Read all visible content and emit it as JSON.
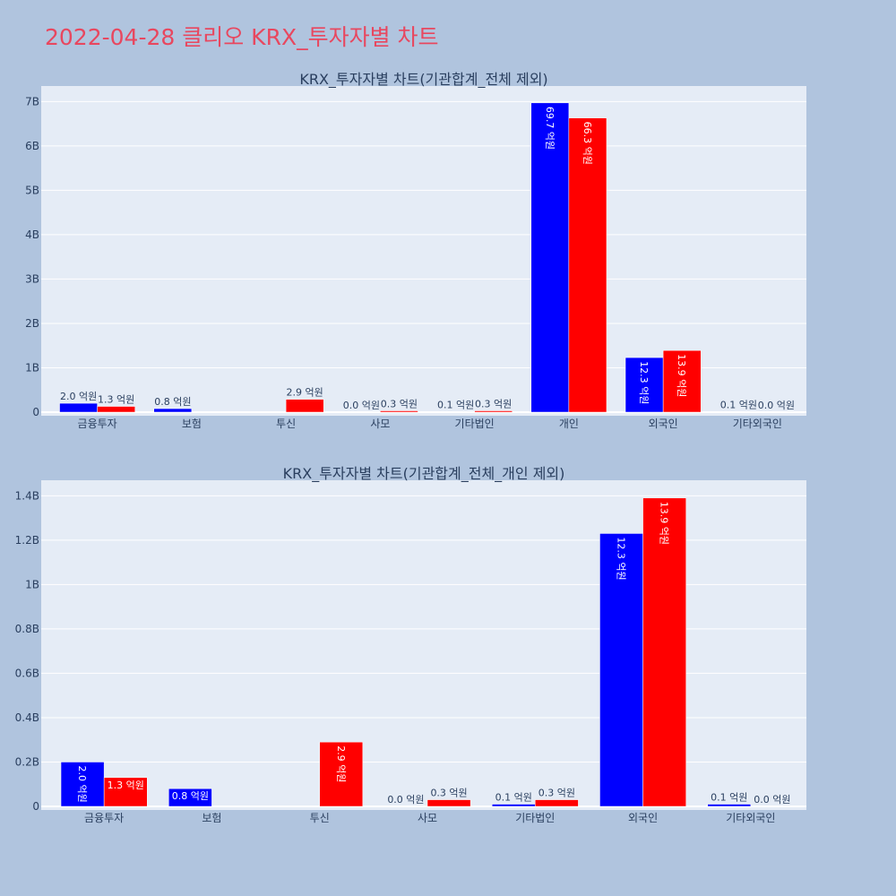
{
  "page_title": "2022-04-28 클리오 KRX_투자자별 차트",
  "chart_data": [
    {
      "type": "bar",
      "title": "KRX_투자자별 차트(기관합계_전체 제외)",
      "xlabel": "",
      "ylabel": "",
      "categories": [
        "금융투자",
        "보험",
        "투신",
        "사모",
        "기타법인",
        "개인",
        "외국인",
        "기타외국인"
      ],
      "series": [
        {
          "color": "#0000ff",
          "values": [
            0.2,
            0.08,
            0.0,
            0.0,
            0.01,
            6.97,
            1.23,
            0.01
          ],
          "labels": [
            "2.0 억원",
            "0.8 억원",
            "",
            "0.0 억원",
            "0.1 억원",
            "69.7 억원",
            "12.3 억원",
            "0.1 억원"
          ]
        },
        {
          "color": "#ff0000",
          "values": [
            0.13,
            0.0,
            0.29,
            0.03,
            0.03,
            6.63,
            1.39,
            0.0
          ],
          "labels": [
            "1.3 억원",
            "",
            "2.9 억원",
            "0.3 억원",
            "0.3 억원",
            "66.3 억원",
            "13.9 억원",
            "0.0 억원"
          ]
        }
      ],
      "yticks": [
        "0",
        "1B",
        "2B",
        "3B",
        "4B",
        "5B",
        "6B",
        "7B"
      ],
      "ytick_values": [
        0,
        1,
        2,
        3,
        4,
        5,
        6,
        7
      ],
      "ylim": [
        0,
        7.35
      ],
      "grid": true,
      "legend": "none"
    },
    {
      "type": "bar",
      "title": "KRX_투자자별 차트(기관합계_전체_개인 제외)",
      "xlabel": "",
      "ylabel": "",
      "categories": [
        "금융투자",
        "보험",
        "투신",
        "사모",
        "기타법인",
        "외국인",
        "기타외국인"
      ],
      "series": [
        {
          "color": "#0000ff",
          "values": [
            0.2,
            0.08,
            0.0,
            0.0,
            0.01,
            1.23,
            0.01
          ],
          "labels": [
            "2.0 억원",
            "0.8 억원",
            "",
            "0.0 억원",
            "0.1 억원",
            "12.3 억원",
            "0.1 억원"
          ]
        },
        {
          "color": "#ff0000",
          "values": [
            0.13,
            0.0,
            0.29,
            0.03,
            0.03,
            1.39,
            0.0
          ],
          "labels": [
            "1.3 억원",
            "",
            "2.9 억원",
            "0.3 억원",
            "0.3 억원",
            "13.9 억원",
            "0.0 억원"
          ]
        }
      ],
      "yticks": [
        "0",
        "0.2B",
        "0.4B",
        "0.6B",
        "0.8B",
        "1B",
        "1.2B",
        "1.4B"
      ],
      "ytick_values": [
        0,
        0.2,
        0.4,
        0.6,
        0.8,
        1.0,
        1.2,
        1.4
      ],
      "ylim": [
        0,
        1.47
      ],
      "grid": true,
      "legend": "none"
    }
  ]
}
